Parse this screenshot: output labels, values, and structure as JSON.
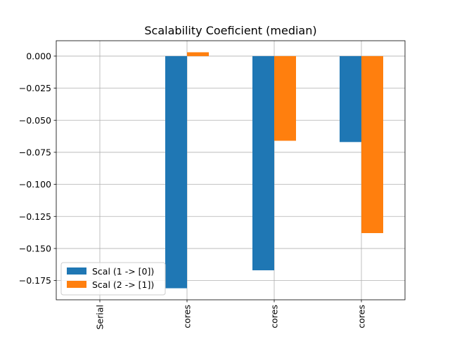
{
  "chart_data": {
    "type": "bar",
    "title": "Scalability Coeficient (median)",
    "xlabel": "",
    "ylabel": "",
    "categories": [
      "Serial",
      "cores",
      "cores",
      "cores"
    ],
    "series": [
      {
        "name": "Scal (1 -> [0])",
        "color": "#1f77b4",
        "values": [
          0.0,
          -0.181,
          -0.167,
          -0.067
        ]
      },
      {
        "name": "Scal (2 -> [1])",
        "color": "#ff7f0e",
        "values": [
          0.0,
          0.003,
          -0.066,
          -0.138
        ]
      }
    ],
    "ylim": [
      -0.19,
      0.012
    ],
    "yticks": [
      0.0,
      -0.025,
      -0.05,
      -0.075,
      -0.1,
      -0.125,
      -0.15,
      -0.175
    ],
    "ytick_labels": [
      "0.000",
      "−0.025",
      "−0.050",
      "−0.075",
      "−0.100",
      "−0.125",
      "−0.150",
      "−0.175"
    ],
    "grid": true,
    "legend_position": "lower-left"
  }
}
